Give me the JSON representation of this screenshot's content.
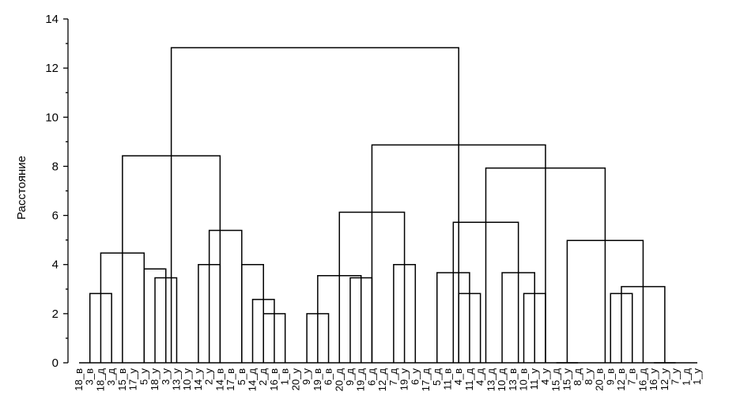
{
  "chart_data": {
    "type": "dendrogram",
    "ylabel": "Расстояние",
    "ylim": [
      0,
      14
    ],
    "yticks": [
      0,
      2,
      4,
      6,
      8,
      10,
      12,
      14
    ],
    "leaves": [
      "18_в",
      "3_в",
      "18_д",
      "3_д",
      "15_в",
      "17_у",
      "5_у",
      "18_у",
      "3_у",
      "13_у",
      "10_у",
      "14_у",
      "2_у",
      "14_в",
      "17_в",
      "5_в",
      "14_д",
      "2_д",
      "16_в",
      "1_в",
      "20_у",
      "9_у",
      "19_в",
      "6_в",
      "20_д",
      "9_д",
      "19_д",
      "6_д",
      "12_д",
      "7_д",
      "19_у",
      "6_у",
      "17_д",
      "5_д",
      "11_в",
      "4_в",
      "11_д",
      "4_д",
      "13_д",
      "10_д",
      "13_в",
      "10_в",
      "11_у",
      "4_у",
      "15_д",
      "15_у",
      "8_д",
      "8_у",
      "20_в",
      "9_в",
      "12_в",
      "7_в",
      "16_д",
      "16_у",
      "12_у",
      "7_у",
      "1_д",
      "1_у"
    ],
    "merges": [
      {
        "a": 1,
        "b": 3,
        "h": 2.82
      },
      {
        "a": 7,
        "b": 9,
        "h": 3.46
      },
      {
        "a": 6,
        "b": 8,
        "h": 3.82
      },
      {
        "a": 2,
        "b": 6,
        "h": 4.47
      },
      {
        "a": 11,
        "b": 13,
        "h": 4.0
      },
      {
        "a": 17,
        "b": 19,
        "h": 2.0
      },
      {
        "a": 16,
        "b": 18,
        "h": 2.58
      },
      {
        "a": 15,
        "b": 17,
        "h": 4.0
      },
      {
        "a": 12,
        "b": 15,
        "h": 5.39
      },
      {
        "a": 4,
        "b": 13,
        "h": 8.43
      },
      {
        "a": 21,
        "b": 23,
        "h": 2.0
      },
      {
        "a": 25,
        "b": 27,
        "h": 3.46
      },
      {
        "a": 22,
        "b": 26,
        "h": 3.55
      },
      {
        "a": 29,
        "b": 31,
        "h": 4.0
      },
      {
        "a": 24,
        "b": 30,
        "h": 6.13
      },
      {
        "a": 35,
        "b": 37,
        "h": 2.82
      },
      {
        "a": 33,
        "b": 36,
        "h": 3.67
      },
      {
        "a": 41,
        "b": 43,
        "h": 2.82
      },
      {
        "a": 39,
        "b": 42,
        "h": 3.67
      },
      {
        "a": 34.5,
        "b": 40.5,
        "h": 5.72
      },
      {
        "a": 49,
        "b": 51,
        "h": 2.82
      },
      {
        "a": 53,
        "b": 55,
        "h": 0
      },
      {
        "a": 50,
        "b": 54,
        "h": 3.1
      },
      {
        "a": 44,
        "b": 46,
        "h": 0
      },
      {
        "a": 45,
        "b": 52,
        "h": 4.98
      },
      {
        "a": 37.5,
        "b": 48.5,
        "h": 7.93
      },
      {
        "a": 27,
        "b": 43,
        "h": 8.87
      },
      {
        "a": 8.5,
        "b": 35,
        "h": 12.83
      }
    ],
    "stubs": [
      {
        "x": 0,
        "h": 0
      },
      {
        "x": 10,
        "h": 0
      },
      {
        "x": 14,
        "h": 0
      },
      {
        "x": 20,
        "h": 0
      },
      {
        "x": 28,
        "h": 0
      },
      {
        "x": 32,
        "h": 0
      },
      {
        "x": 38,
        "h": 0
      },
      {
        "x": 48,
        "h": 0
      },
      {
        "x": 52,
        "h": 0
      },
      {
        "x": 56,
        "h": 0
      }
    ]
  }
}
